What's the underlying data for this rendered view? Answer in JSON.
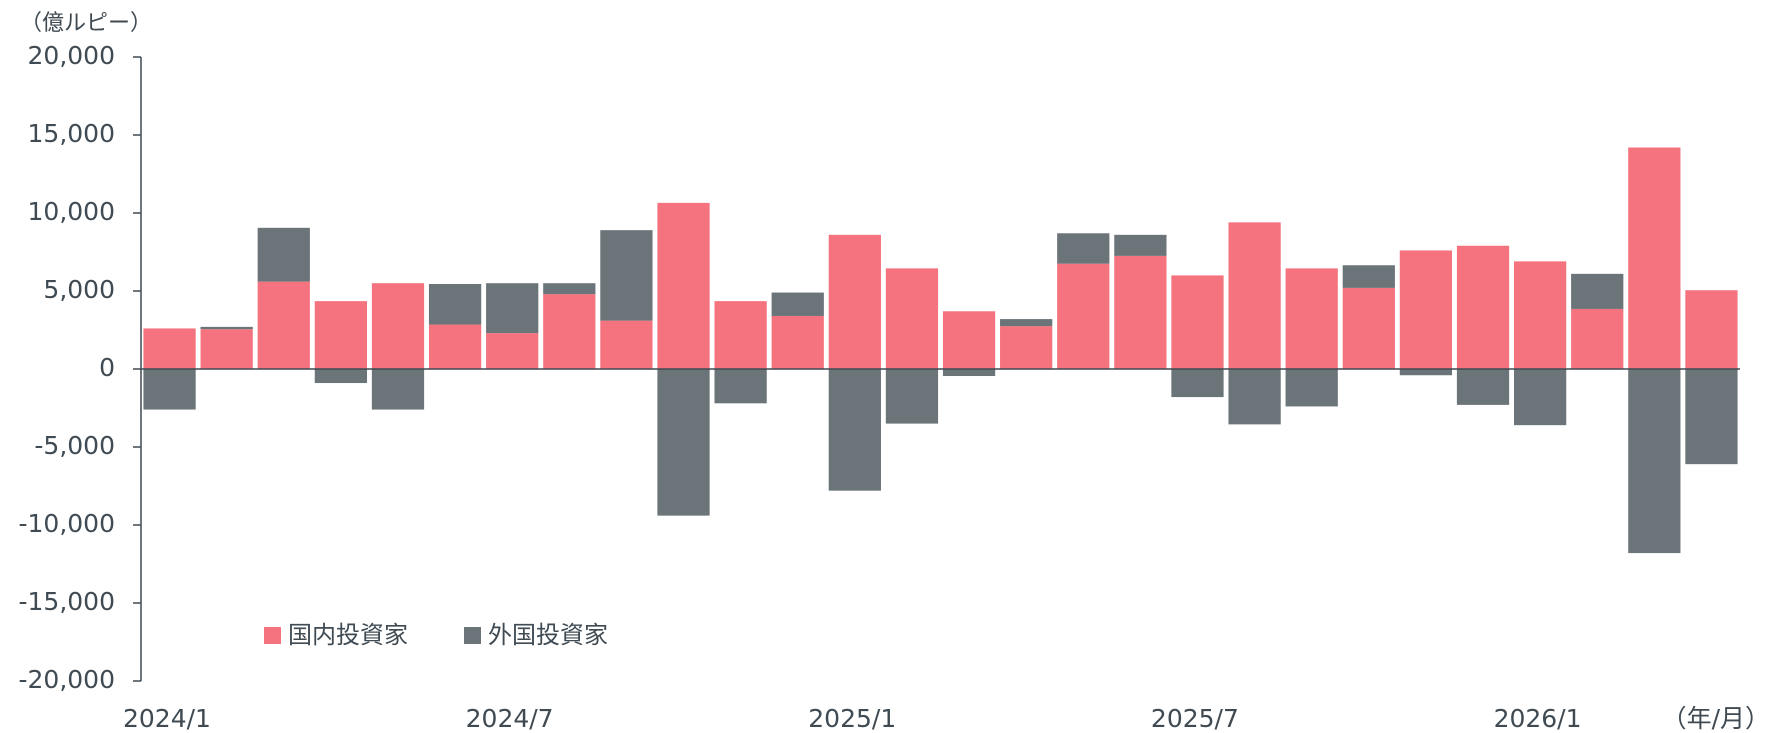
{
  "chart_data": {
    "type": "stacked-bar",
    "y_unit": "（億ルピー）",
    "x_unit": "（年/月）",
    "categories": [
      "2024/1",
      null,
      null,
      null,
      null,
      null,
      "2024/7",
      null,
      null,
      null,
      null,
      null,
      "2025/1",
      null,
      null,
      null,
      null,
      null,
      "2025/7",
      null,
      null,
      null,
      null,
      null,
      "2026/1",
      null,
      null,
      null
    ],
    "series": [
      {
        "name": "国内投資家",
        "color": "#f4737f",
        "values": [
          2600,
          2550,
          5600,
          4350,
          5500,
          2850,
          2300,
          4800,
          3100,
          10650,
          4350,
          3400,
          8600,
          6450,
          3700,
          2750,
          6750,
          7250,
          6000,
          9400,
          6450,
          5200,
          7600,
          7900,
          6900,
          3850,
          14200,
          5050
        ]
      },
      {
        "name": "外国投資家",
        "color": "#6b7479",
        "values": [
          -2600,
          150,
          3450,
          -900,
          -2600,
          2600,
          3200,
          700,
          5800,
          -9400,
          -2200,
          1500,
          -7800,
          -3500,
          -450,
          450,
          1950,
          1350,
          -1800,
          -3550,
          -2400,
          1450,
          -400,
          -2300,
          -3600,
          2250,
          -11800,
          -6100
        ]
      }
    ],
    "ylim": [
      -20000,
      20000
    ],
    "yticks": [
      {
        "value": -20000,
        "label": "-20,000"
      },
      {
        "value": -15000,
        "label": "-15,000"
      },
      {
        "value": -10000,
        "label": "-10,000"
      },
      {
        "value": -5000,
        "label": "-5,000"
      },
      0,
      {
        "value": 5000,
        "label": "5,000"
      },
      {
        "value": 10000,
        "label": "10,000"
      },
      {
        "value": 15000,
        "label": "15,000"
      },
      {
        "value": 20000,
        "label": "20,000"
      }
    ]
  }
}
